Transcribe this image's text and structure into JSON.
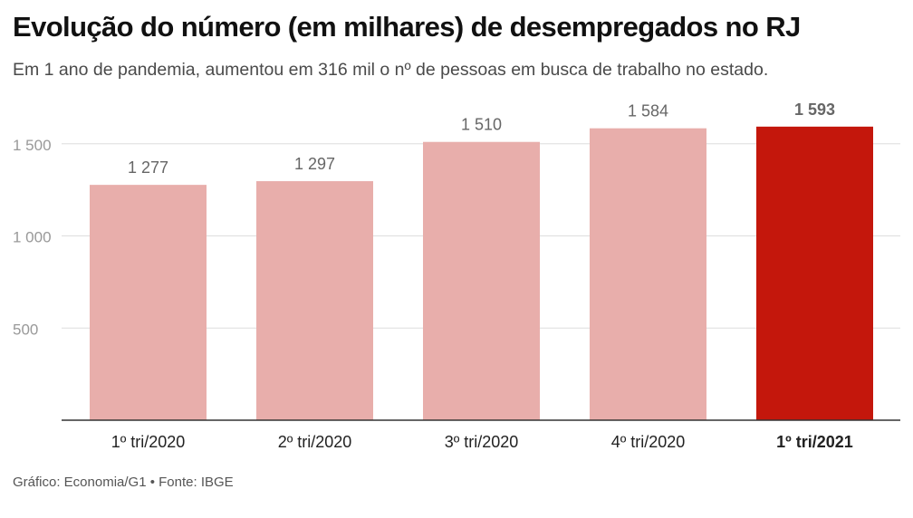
{
  "header": {
    "title": "Evolução do número (em milhares) de desempregados no RJ",
    "subtitle": "Em 1 ano de pandemia, aumentou em 316 mil o nº de pessoas em busca de trabalho no estado."
  },
  "footer": {
    "source": "Gráfico: Economia/G1 • Fonte: IBGE"
  },
  "colors": {
    "bar_default": "#e8aeab",
    "bar_highlight": "#c4170c",
    "grid": "#dddddd",
    "axis": "#333333",
    "tick_label": "#999999",
    "value_label": "#666666"
  },
  "chart_data": {
    "type": "bar",
    "title": "Evolução do número (em milhares) de desempregados no RJ",
    "xlabel": "",
    "ylabel": "",
    "categories": [
      "1º tri/2020",
      "2º tri/2020",
      "3º tri/2020",
      "4º tri/2020",
      "1º tri/2021"
    ],
    "values": [
      1277,
      1297,
      1510,
      1584,
      1593
    ],
    "value_labels": [
      "1 277",
      "1 297",
      "1 510",
      "1 584",
      "1 593"
    ],
    "highlight_index": 4,
    "ylim": [
      0,
      1500
    ],
    "yticks": [
      500,
      1000,
      1500
    ],
    "ytick_labels": [
      "500",
      "1 000",
      "1 500"
    ],
    "grid": true,
    "legend": "none"
  }
}
